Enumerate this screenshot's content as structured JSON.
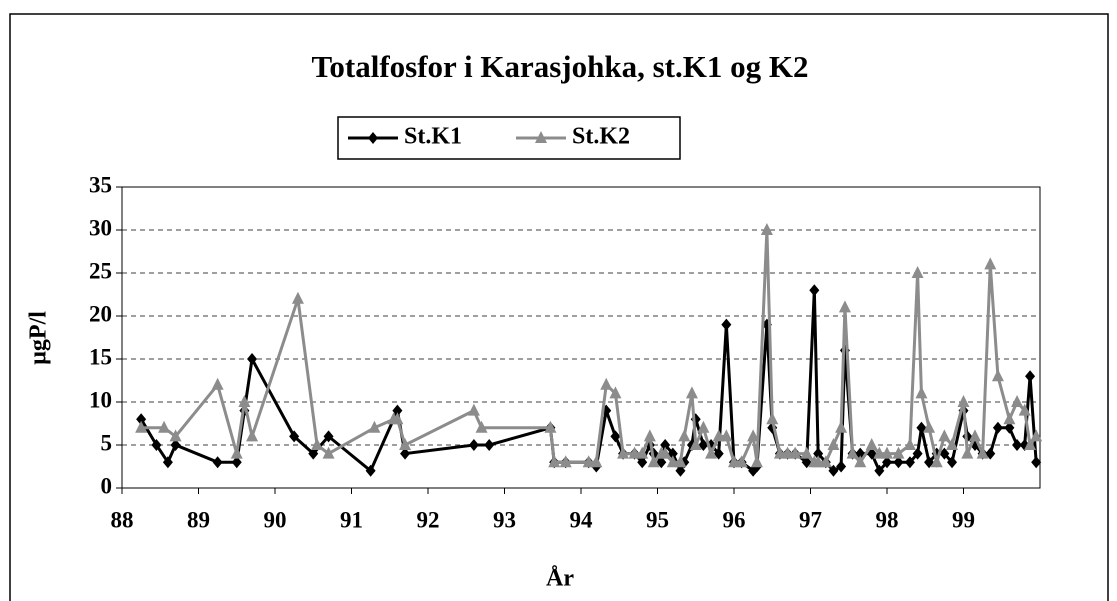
{
  "chart_data": {
    "type": "line",
    "title": "Totalfosfor i Karasjohka, st.K1 og K2",
    "x_label": "År",
    "y_label": "µgP/l",
    "xlim": [
      88,
      100
    ],
    "xticks": [
      88,
      89,
      90,
      91,
      92,
      93,
      94,
      95,
      96,
      97,
      98,
      99
    ],
    "ylim": [
      0,
      35
    ],
    "yticks": [
      0,
      5,
      10,
      15,
      20,
      25,
      30,
      35
    ],
    "grid": true,
    "legend": "top",
    "series": [
      {
        "name": "St.K1",
        "color": "#000000",
        "marker": "diamond",
        "x": [
          88.25,
          88.45,
          88.6,
          88.7,
          89.25,
          89.5,
          89.6,
          89.7,
          90.25,
          90.5,
          90.7,
          91.25,
          91.6,
          91.7,
          92.6,
          92.8,
          93.6,
          93.65,
          93.8,
          94.1,
          94.2,
          94.33,
          94.45,
          94.55,
          94.7,
          94.8,
          94.9,
          94.95,
          95.05,
          95.1,
          95.2,
          95.3,
          95.35,
          95.45,
          95.5,
          95.6,
          95.7,
          95.8,
          95.9,
          96.0,
          96.1,
          96.25,
          96.3,
          96.43,
          96.5,
          96.6,
          96.7,
          96.8,
          96.95,
          97.05,
          97.1,
          97.2,
          97.3,
          97.4,
          97.45,
          97.55,
          97.65,
          97.8,
          97.9,
          98.0,
          98.15,
          98.3,
          98.4,
          98.45,
          98.55,
          98.65,
          98.75,
          98.85,
          99.0,
          99.05,
          99.15,
          99.25,
          99.35,
          99.45,
          99.6,
          99.7,
          99.8,
          99.87,
          99.95
        ],
        "values": [
          8,
          5,
          3,
          5,
          3,
          3,
          9,
          15,
          6,
          4,
          6,
          2,
          9,
          4,
          5,
          5,
          7,
          3,
          3,
          3,
          2.5,
          9,
          6,
          4,
          4,
          3,
          5,
          4,
          3,
          5,
          4,
          2,
          3,
          5,
          8,
          5,
          5,
          4,
          19,
          3,
          3,
          2,
          2.5,
          19,
          7,
          4,
          4,
          4,
          3,
          23,
          4,
          3,
          2,
          2.5,
          16,
          4,
          4,
          4,
          2,
          3,
          3,
          3,
          4,
          7,
          3,
          4,
          4,
          3,
          9,
          6,
          5,
          4,
          4,
          7,
          7,
          5,
          5,
          13,
          3
        ]
      },
      {
        "name": "St.K2",
        "color": "#8c8c8c",
        "marker": "triangle",
        "x": [
          88.25,
          88.55,
          88.7,
          89.25,
          89.5,
          89.6,
          89.7,
          90.3,
          90.55,
          90.7,
          91.3,
          91.55,
          91.6,
          91.7,
          92.6,
          92.7,
          93.6,
          93.65,
          93.8,
          94.1,
          94.2,
          94.33,
          94.45,
          94.55,
          94.7,
          94.8,
          94.9,
          94.95,
          95.05,
          95.1,
          95.2,
          95.3,
          95.35,
          95.45,
          95.5,
          95.6,
          95.7,
          95.8,
          95.9,
          96.0,
          96.1,
          96.25,
          96.3,
          96.43,
          96.5,
          96.6,
          96.7,
          96.8,
          96.95,
          97.05,
          97.1,
          97.2,
          97.3,
          97.4,
          97.45,
          97.55,
          97.65,
          97.8,
          97.9,
          98.0,
          98.15,
          98.3,
          98.4,
          98.45,
          98.55,
          98.65,
          98.75,
          98.85,
          99.0,
          99.05,
          99.15,
          99.25,
          99.35,
          99.45,
          99.6,
          99.7,
          99.8,
          99.87,
          99.95
        ],
        "values": [
          7,
          7,
          6,
          12,
          4,
          10,
          6,
          22,
          5,
          4,
          7,
          8,
          8,
          5,
          9,
          7,
          7,
          3,
          3,
          3,
          3,
          12,
          11,
          4,
          4,
          4,
          6,
          3,
          4,
          4,
          3,
          3,
          6,
          11,
          5,
          7,
          4,
          6,
          6,
          3,
          3,
          6,
          3,
          30,
          8,
          4,
          4,
          4,
          4,
          3,
          3,
          3,
          5,
          7,
          21,
          4,
          3,
          5,
          4,
          4,
          4,
          5,
          25,
          11,
          7,
          3,
          6,
          5,
          10,
          4,
          6,
          4,
          26,
          13,
          8,
          10,
          9,
          5,
          6
        ]
      }
    ]
  }
}
